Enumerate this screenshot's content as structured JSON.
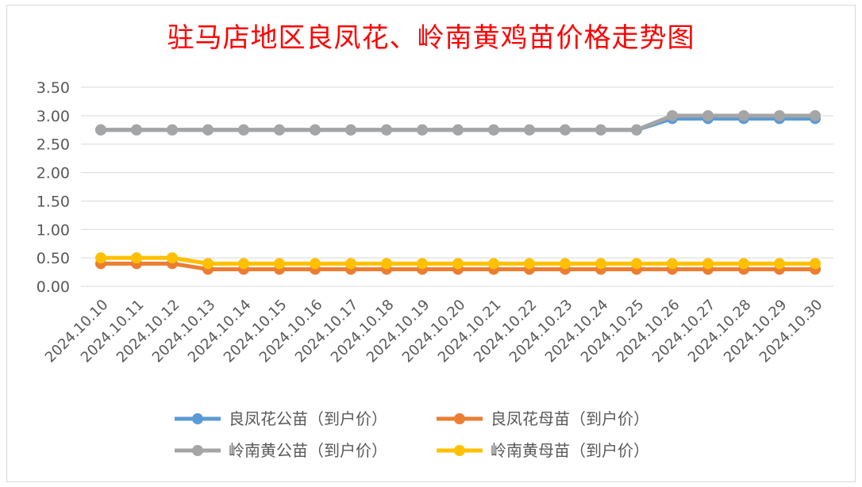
{
  "chart_data": {
    "type": "line",
    "title": "驻马店地区良凤花、岭南黄鸡苗价格走势图",
    "categories": [
      "2024.10.10",
      "2024.10.11",
      "2024.10.12",
      "2024.10.13",
      "2024.10.14",
      "2024.10.15",
      "2024.10.16",
      "2024.10.17",
      "2024.10.18",
      "2024.10.19",
      "2024.10.20",
      "2024.10.21",
      "2024.10.22",
      "2024.10.23",
      "2024.10.24",
      "2024.10.25",
      "2024.10.26",
      "2024.10.27",
      "2024.10.28",
      "2024.10.29",
      "2024.10.30"
    ],
    "yticks": [
      "0.00",
      "0.50",
      "1.00",
      "1.50",
      "2.00",
      "2.50",
      "3.00",
      "3.50"
    ],
    "ylim": [
      0,
      3.5
    ],
    "grid": true,
    "legend_position": "bottom",
    "series": [
      {
        "name": "良凤花公苗（到户价）",
        "color": "#5b9bd5",
        "values": [
          2.75,
          2.75,
          2.75,
          2.75,
          2.75,
          2.75,
          2.75,
          2.75,
          2.75,
          2.75,
          2.75,
          2.75,
          2.75,
          2.75,
          2.75,
          2.75,
          2.95,
          2.95,
          2.95,
          2.95,
          2.95
        ]
      },
      {
        "name": "良凤花母苗（到户价）",
        "color": "#ed7d31",
        "values": [
          0.4,
          0.4,
          0.4,
          0.3,
          0.3,
          0.3,
          0.3,
          0.3,
          0.3,
          0.3,
          0.3,
          0.3,
          0.3,
          0.3,
          0.3,
          0.3,
          0.3,
          0.3,
          0.3,
          0.3,
          0.3
        ]
      },
      {
        "name": "岭南黄公苗（到户价）",
        "color": "#a5a5a5",
        "values": [
          2.75,
          2.75,
          2.75,
          2.75,
          2.75,
          2.75,
          2.75,
          2.75,
          2.75,
          2.75,
          2.75,
          2.75,
          2.75,
          2.75,
          2.75,
          2.75,
          3.0,
          3.0,
          3.0,
          3.0,
          3.0
        ]
      },
      {
        "name": "岭南黄母苗（到户价）",
        "color": "#ffc000",
        "values": [
          0.5,
          0.5,
          0.5,
          0.4,
          0.4,
          0.4,
          0.4,
          0.4,
          0.4,
          0.4,
          0.4,
          0.4,
          0.4,
          0.4,
          0.4,
          0.4,
          0.4,
          0.4,
          0.4,
          0.4,
          0.4
        ]
      }
    ]
  }
}
